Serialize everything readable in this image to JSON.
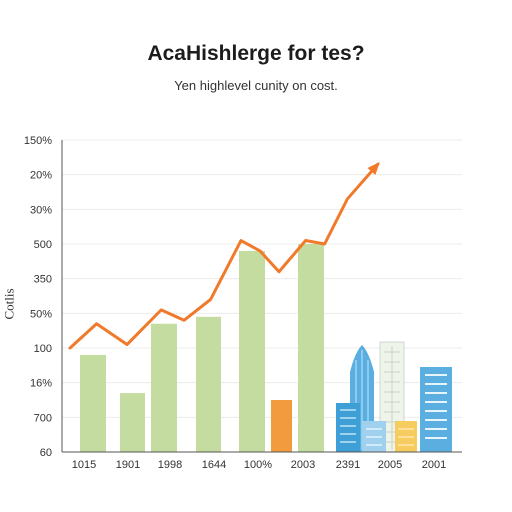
{
  "chart_data": {
    "type": "bar",
    "title": "AcaHishlerge for tes?",
    "subtitle": "Yen highlevel cunity on cost.",
    "ylabel": "Cotlis",
    "xlabel": "",
    "y_tick_labels": [
      "150%",
      "20%",
      "30%",
      "500",
      "350",
      "50%",
      "100",
      "16%",
      "700",
      "60"
    ],
    "x_tick_labels": [
      "1015",
      "1901",
      "1998",
      "1644",
      "100%",
      "2003",
      "2391",
      "2005",
      "2001"
    ],
    "bars": [
      {
        "category": "1015",
        "value": 2.8,
        "color": "#c5dca0"
      },
      {
        "category": "1901",
        "value": 1.7,
        "color": "#c5dca0"
      },
      {
        "category": "1998",
        "value": 3.7,
        "color": "#c5dca0"
      },
      {
        "category": "1644",
        "value": 3.9,
        "color": "#c5dca0"
      },
      {
        "category": "100%",
        "value": 5.8,
        "color": "#c5dca0"
      },
      {
        "category": "100%",
        "value": 1.5,
        "color": "#f29a3e"
      },
      {
        "category": "2003",
        "value": 6.0,
        "color": "#c5dca0"
      }
    ],
    "line": {
      "color": "#f07a2a",
      "x": [
        0.0,
        0.7,
        1.5,
        2.4,
        3.0,
        3.7,
        4.5,
        5.0,
        5.5,
        6.2,
        6.7,
        7.3,
        8.1
      ],
      "y": [
        3.0,
        3.7,
        3.1,
        4.1,
        3.8,
        4.4,
        6.1,
        5.8,
        5.2,
        6.1,
        6.0,
        7.3,
        8.3
      ]
    },
    "ylim": [
      0,
      9
    ],
    "grid": true,
    "accent_colors": [
      "#c5dca0",
      "#f07a2a",
      "#5aaee0",
      "#9fd0ee",
      "#f6cc5e"
    ]
  }
}
